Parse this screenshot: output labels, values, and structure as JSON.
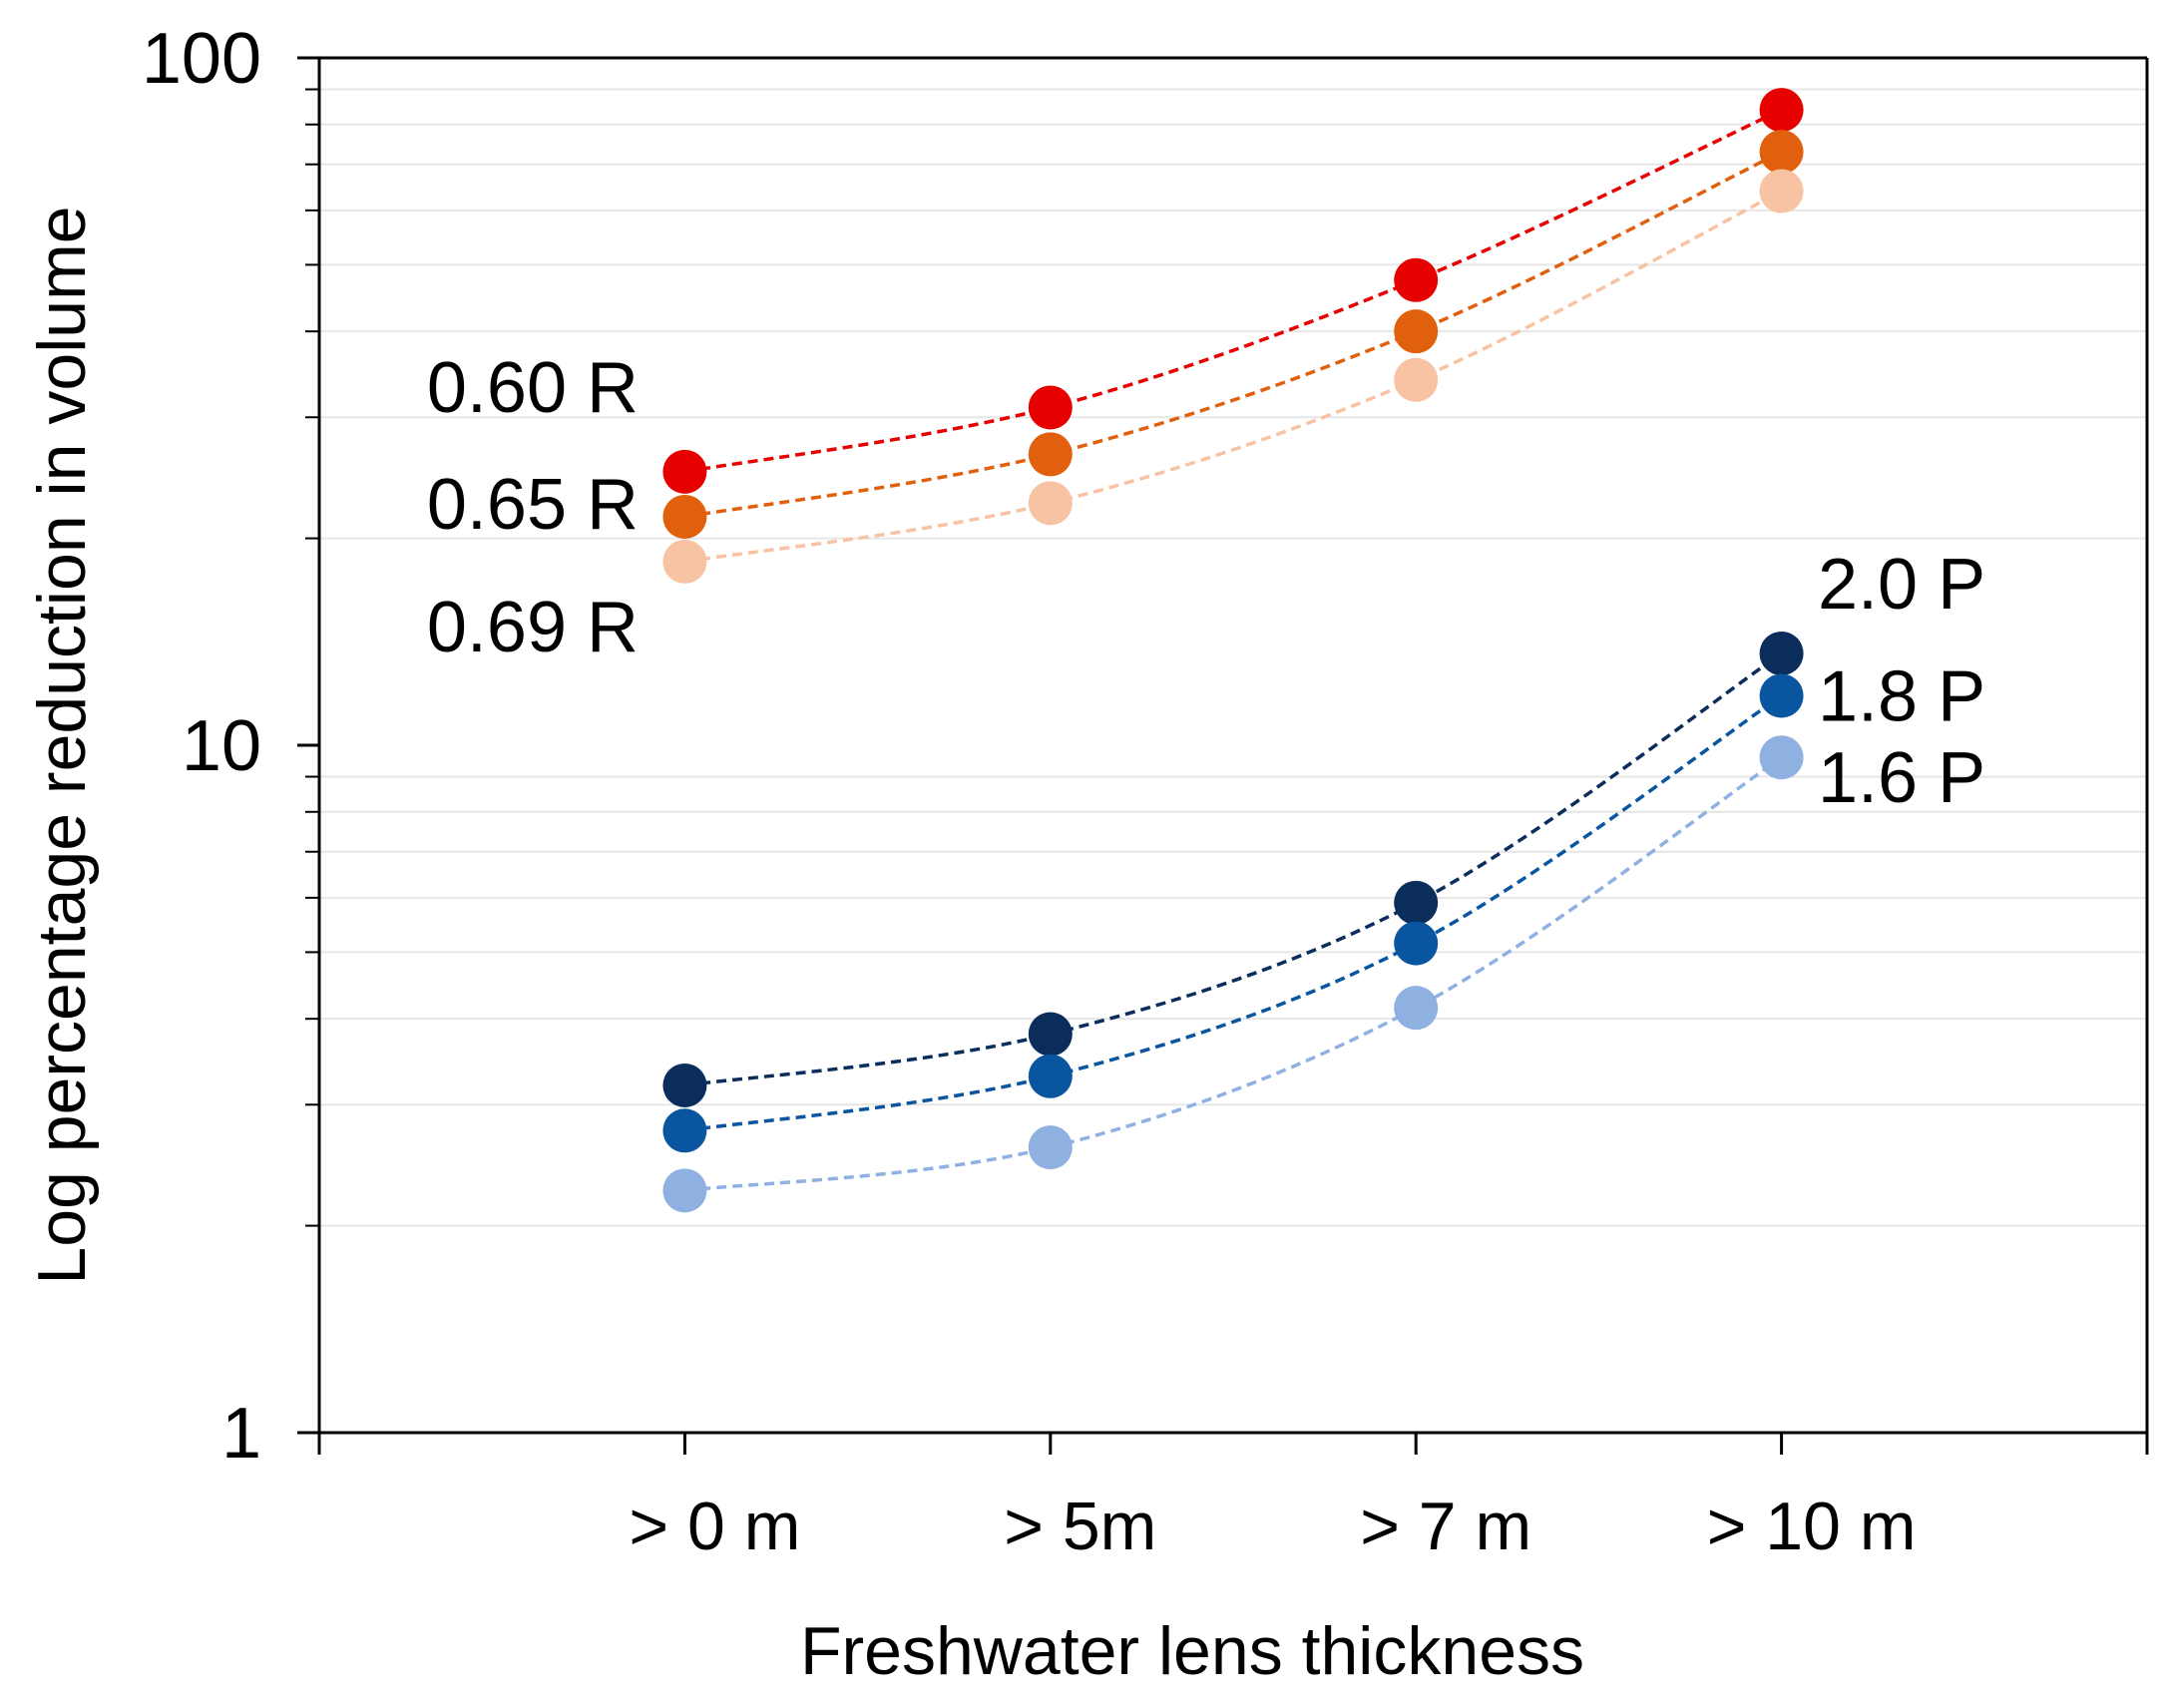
{
  "chart_data": {
    "type": "line",
    "title": "",
    "xlabel": "Freshwater lens thickness",
    "ylabel": "Log percentage reduction in volume",
    "yscale": "log",
    "ylim": [
      1,
      100
    ],
    "yticks": [
      {
        "value": 1,
        "label": "1"
      },
      {
        "value": 10,
        "label": "10"
      },
      {
        "value": 100,
        "label": "100"
      }
    ],
    "categories": [
      "> 0 m",
      "> 5m",
      "> 7 m",
      "> 10 m"
    ],
    "grid": true,
    "legend": "inline labels",
    "series": [
      {
        "name": "0.60 R",
        "color": "#e60000",
        "values": [
          25,
          31,
          47.5,
          84
        ]
      },
      {
        "name": "0.65 R",
        "color": "#e0600d",
        "values": [
          21.5,
          26.5,
          40,
          73
        ]
      },
      {
        "name": "0.69 R",
        "color": "#f8c3a2",
        "values": [
          18.5,
          22.5,
          34,
          64
        ]
      },
      {
        "name": "2.0 P",
        "color": "#0a2d5c",
        "values": [
          3.2,
          3.8,
          5.9,
          13.6
        ]
      },
      {
        "name": "1.8 P",
        "color": "#0955a0",
        "values": [
          2.75,
          3.3,
          5.15,
          11.8
        ]
      },
      {
        "name": "1.6 P",
        "color": "#8fb1e1",
        "values": [
          2.25,
          2.6,
          4.15,
          9.6
        ]
      }
    ]
  }
}
